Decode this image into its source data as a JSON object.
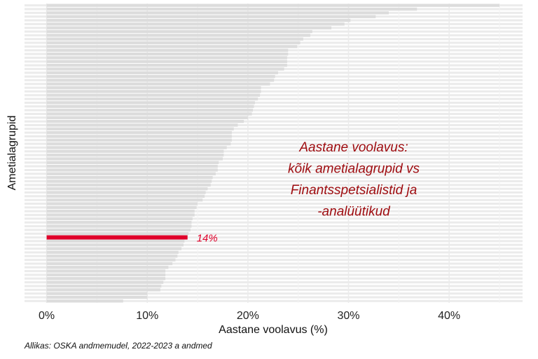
{
  "chart_data": {
    "type": "bar",
    "orientation": "horizontal",
    "title": "Aastane voolavus: kõik ametialagrupid vs Finantsspetsialistid ja -analüütikud",
    "annotation_lines": [
      "Aastane voolavus:",
      "kõik ametialagrupid vs",
      "Finantsspetsialistid ja",
      "-analüütikud"
    ],
    "xlabel": "Aastane voolavus (%)",
    "ylabel": "Ametialagrupid",
    "xlim": [
      -0.022,
      0.473
    ],
    "xticks": [
      0,
      0.1,
      0.2,
      0.3,
      0.4
    ],
    "xtick_labels": [
      "0%",
      "10%",
      "20%",
      "30%",
      "40%"
    ],
    "grid": true,
    "values": [
      0.45,
      0.368,
      0.34,
      0.327,
      0.302,
      0.296,
      0.283,
      0.264,
      0.262,
      0.255,
      0.252,
      0.249,
      0.24,
      0.24,
      0.239,
      0.239,
      0.239,
      0.236,
      0.23,
      0.227,
      0.226,
      0.222,
      0.213,
      0.213,
      0.212,
      0.21,
      0.207,
      0.206,
      0.205,
      0.204,
      0.2,
      0.196,
      0.19,
      0.186,
      0.184,
      0.184,
      0.184,
      0.183,
      0.179,
      0.176,
      0.176,
      0.175,
      0.171,
      0.17,
      0.17,
      0.168,
      0.165,
      0.164,
      0.163,
      0.16,
      0.158,
      0.157,
      0.155,
      0.15,
      0.149,
      0.147,
      0.147,
      0.145,
      0.144,
      0.144,
      0.143,
      0.141,
      0.14,
      0.137,
      0.136,
      0.134,
      0.131,
      0.13,
      0.128,
      0.125,
      0.121,
      0.118,
      0.118,
      0.118,
      0.116,
      0.114,
      0.113,
      0.1,
      0.1,
      0.076
    ],
    "highlight": {
      "index": 62,
      "value": 0.14,
      "label": "14%",
      "color": "#e0002a"
    },
    "bar_color": "#dcdcdc",
    "grid_color": "#ebebeb"
  },
  "source": "Allikas: OSKA andmemudel, 2022-2023 a andmed"
}
